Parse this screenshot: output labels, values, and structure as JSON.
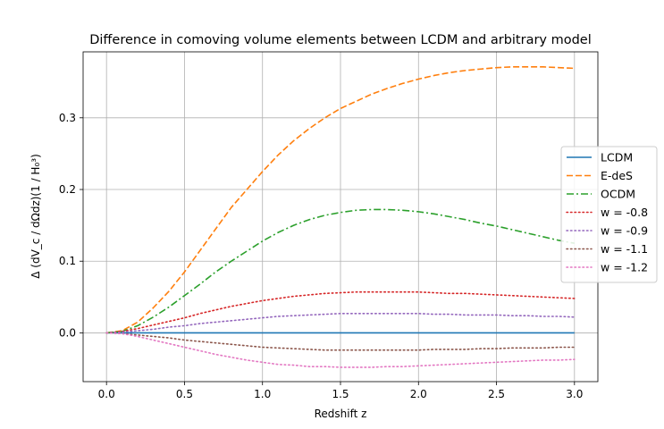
{
  "chart_data": {
    "type": "line",
    "title": "Difference in comoving volume elements between LCDM and arbitrary model",
    "xlabel": "Redshift z",
    "ylabel": "Δ (dV_c / dΩdz)(1 / H₀³)",
    "xlim": [
      -0.15,
      3.15
    ],
    "ylim": [
      -0.068,
      0.392
    ],
    "x_ticks": [
      0.0,
      0.5,
      1.0,
      1.5,
      2.0,
      2.5,
      3.0
    ],
    "x_tick_labels": [
      "0.0",
      "0.5",
      "1.0",
      "1.5",
      "2.0",
      "2.5",
      "3.0"
    ],
    "y_ticks": [
      0.0,
      0.1,
      0.2,
      0.3
    ],
    "y_tick_labels": [
      "0.0",
      "0.1",
      "0.2",
      "0.3"
    ],
    "grid": true,
    "legend_position": "center-right",
    "x": [
      0.0,
      0.1,
      0.2,
      0.3,
      0.4,
      0.5,
      0.6,
      0.7,
      0.8,
      0.9,
      1.0,
      1.1,
      1.2,
      1.3,
      1.4,
      1.5,
      1.6,
      1.7,
      1.8,
      1.9,
      2.0,
      2.1,
      2.2,
      2.3,
      2.4,
      2.5,
      2.6,
      2.7,
      2.8,
      2.9,
      3.0
    ],
    "series": [
      {
        "name": "LCDM",
        "color": "#1f77b4",
        "style": "solid",
        "values": [
          0,
          0,
          0,
          0,
          0,
          0,
          0,
          0,
          0,
          0,
          0,
          0,
          0,
          0,
          0,
          0,
          0,
          0,
          0,
          0,
          0,
          0,
          0,
          0,
          0,
          0,
          0,
          0,
          0,
          0,
          0
        ]
      },
      {
        "name": "E-deS",
        "color": "#ff7f0e",
        "style": "dashed",
        "values": [
          0.0,
          0.003,
          0.015,
          0.035,
          0.058,
          0.085,
          0.115,
          0.145,
          0.175,
          0.2,
          0.225,
          0.248,
          0.268,
          0.285,
          0.3,
          0.313,
          0.323,
          0.333,
          0.341,
          0.348,
          0.354,
          0.359,
          0.363,
          0.366,
          0.368,
          0.37,
          0.371,
          0.371,
          0.371,
          0.37,
          0.369
        ]
      },
      {
        "name": "OCDM",
        "color": "#2ca02c",
        "style": "dashdot",
        "values": [
          0.0,
          0.002,
          0.01,
          0.022,
          0.036,
          0.052,
          0.068,
          0.085,
          0.1,
          0.114,
          0.128,
          0.14,
          0.15,
          0.158,
          0.164,
          0.168,
          0.171,
          0.172,
          0.172,
          0.171,
          0.169,
          0.166,
          0.162,
          0.158,
          0.153,
          0.149,
          0.144,
          0.139,
          0.134,
          0.129,
          0.125
        ]
      },
      {
        "name": "w = -0.8",
        "color": "#d62728",
        "style": "dotted",
        "values": [
          0.0,
          0.002,
          0.006,
          0.011,
          0.016,
          0.021,
          0.027,
          0.032,
          0.037,
          0.041,
          0.045,
          0.048,
          0.051,
          0.053,
          0.055,
          0.056,
          0.057,
          0.057,
          0.057,
          0.057,
          0.057,
          0.056,
          0.055,
          0.055,
          0.054,
          0.053,
          0.052,
          0.051,
          0.05,
          0.049,
          0.048
        ]
      },
      {
        "name": "w = -0.9",
        "color": "#9467bd",
        "style": "dotted",
        "values": [
          0.0,
          0.001,
          0.003,
          0.005,
          0.008,
          0.01,
          0.013,
          0.015,
          0.017,
          0.019,
          0.021,
          0.023,
          0.024,
          0.025,
          0.026,
          0.027,
          0.027,
          0.027,
          0.027,
          0.027,
          0.027,
          0.026,
          0.026,
          0.025,
          0.025,
          0.025,
          0.024,
          0.024,
          0.023,
          0.023,
          0.022
        ]
      },
      {
        "name": "w = -1.1",
        "color": "#8c564b",
        "style": "dotted",
        "values": [
          0.0,
          -0.001,
          -0.003,
          -0.005,
          -0.007,
          -0.01,
          -0.012,
          -0.014,
          -0.016,
          -0.018,
          -0.02,
          -0.021,
          -0.022,
          -0.023,
          -0.024,
          -0.024,
          -0.024,
          -0.024,
          -0.024,
          -0.024,
          -0.024,
          -0.023,
          -0.023,
          -0.023,
          -0.022,
          -0.022,
          -0.021,
          -0.021,
          -0.021,
          -0.02,
          -0.02
        ]
      },
      {
        "name": "w = -1.2",
        "color": "#e377c2",
        "style": "dotted",
        "values": [
          0.0,
          -0.001,
          -0.005,
          -0.01,
          -0.015,
          -0.02,
          -0.025,
          -0.03,
          -0.034,
          -0.038,
          -0.041,
          -0.044,
          -0.045,
          -0.047,
          -0.047,
          -0.048,
          -0.048,
          -0.048,
          -0.047,
          -0.047,
          -0.046,
          -0.045,
          -0.044,
          -0.043,
          -0.042,
          -0.041,
          -0.04,
          -0.039,
          -0.038,
          -0.038,
          -0.037
        ]
      }
    ]
  }
}
